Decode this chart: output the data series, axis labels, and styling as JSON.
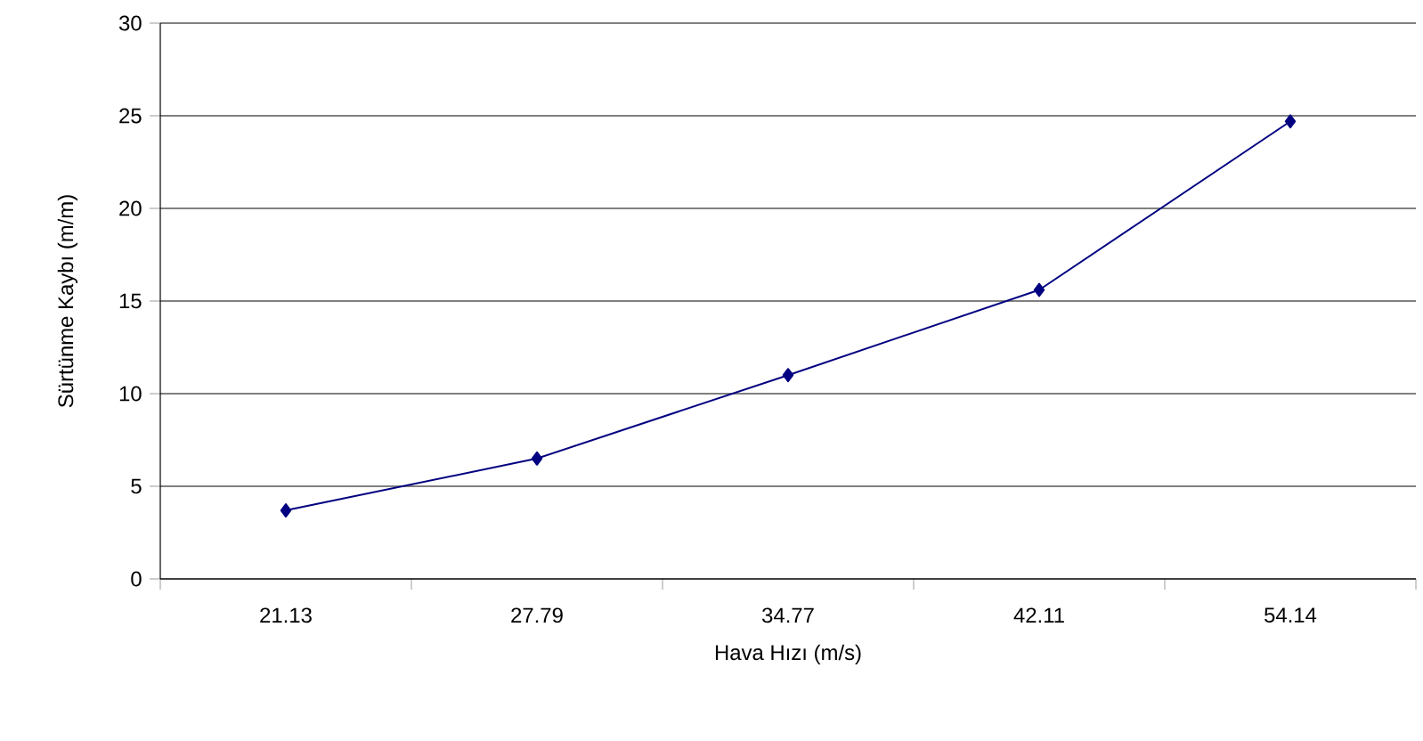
{
  "chart_data": {
    "type": "line",
    "xlabel": "Hava Hızı (m/s)",
    "ylabel": "Sürtünme Kaybı (m/m)",
    "categories": [
      "21.13",
      "27.79",
      "34.77",
      "42.11",
      "54.14"
    ],
    "series": [
      {
        "color": "#000080",
        "values": [
          3.7,
          6.5,
          11,
          15.6,
          24.7
        ]
      }
    ],
    "ylim": [
      0,
      30
    ],
    "yticks": [
      0,
      5,
      10,
      15,
      20,
      25,
      30
    ],
    "grid": "y",
    "marker": "diamond",
    "line_style": "solid"
  }
}
